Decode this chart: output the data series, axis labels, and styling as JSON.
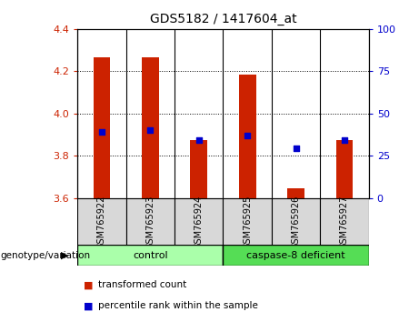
{
  "title": "GDS5182 / 1417604_at",
  "samples": [
    "GSM765922",
    "GSM765923",
    "GSM765924",
    "GSM765925",
    "GSM765926",
    "GSM765927"
  ],
  "transformed_counts": [
    4.265,
    4.265,
    3.875,
    4.185,
    3.645,
    3.875
  ],
  "transformed_counts_base": [
    3.6,
    3.6,
    3.6,
    3.6,
    3.6,
    3.6
  ],
  "percentile_ranks_y": [
    3.915,
    3.92,
    3.875,
    3.895,
    3.835,
    3.875
  ],
  "ylim_left": [
    3.6,
    4.4
  ],
  "ylim_right": [
    0,
    100
  ],
  "yticks_left": [
    3.6,
    3.8,
    4.0,
    4.2,
    4.4
  ],
  "yticks_right": [
    0,
    25,
    50,
    75,
    100
  ],
  "groups": [
    {
      "label": "control",
      "indices": [
        0,
        1,
        2
      ],
      "color": "#aaffaa"
    },
    {
      "label": "caspase-8 deficient",
      "indices": [
        3,
        4,
        5
      ],
      "color": "#55dd55"
    }
  ],
  "bar_color": "#cc2200",
  "dot_color": "#0000cc",
  "tick_color_left": "#cc2200",
  "tick_color_right": "#0000cc",
  "bar_width": 0.35,
  "legend_labels": [
    "transformed count",
    "percentile rank within the sample"
  ],
  "genotype_label": "genotype/variation",
  "sample_box_color": "#d8d8d8",
  "plot_bg": "#ffffff",
  "grid_lines": [
    3.8,
    4.0,
    4.2
  ]
}
